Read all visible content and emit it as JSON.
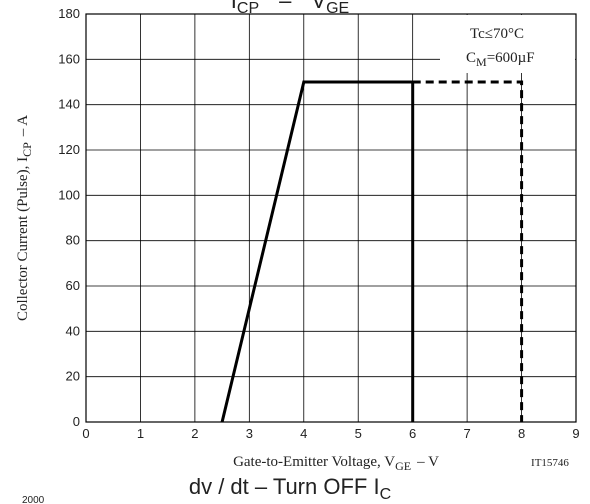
{
  "chart_data": {
    "type": "line",
    "title": "I_CP – V_GE",
    "title_main": "I",
    "title_main_sub": "CP",
    "title_dash": "–",
    "title_v": "V",
    "title_v_sub": "GE",
    "xlabel_prefix": "Gate-to-Emitter Voltage, V",
    "xlabel_sub": "GE",
    "xlabel_suffix": "–  V",
    "ylabel_prefix": "Collector Current (Pulse), I",
    "ylabel_sub": "CP",
    "ylabel_suffix": "–  A",
    "xlim": [
      0,
      9
    ],
    "ylim": [
      0,
      180
    ],
    "x_ticks": [
      0,
      1,
      2,
      3,
      4,
      5,
      6,
      7,
      8,
      9
    ],
    "x_tick_labels": [
      "0",
      "1",
      "2",
      "3",
      "4",
      "5",
      "6",
      "7",
      "8",
      "9"
    ],
    "y_ticks": [
      0,
      20,
      40,
      60,
      80,
      100,
      120,
      140,
      160,
      180
    ],
    "y_tick_labels": [
      "0",
      "20",
      "40",
      "60",
      "80",
      "100",
      "120",
      "140",
      "160",
      "180"
    ],
    "grid": true,
    "series": [
      {
        "style": "solid",
        "x": [
          2.5,
          4,
          6,
          6
        ],
        "y": [
          0,
          150,
          150,
          0
        ]
      },
      {
        "style": "dashed",
        "x": [
          6,
          8,
          8
        ],
        "y": [
          150,
          150,
          0
        ]
      }
    ],
    "annotations": {
      "tc": "Tc≤70°C",
      "cm_prefix": "C",
      "cm_sub": "M",
      "cm_suffix": "=600µF"
    },
    "figure_code": "IT15746",
    "caption_prefix": "dv / dt  –  Turn OFF I",
    "caption_sub": "C",
    "footer_number": "2000"
  }
}
